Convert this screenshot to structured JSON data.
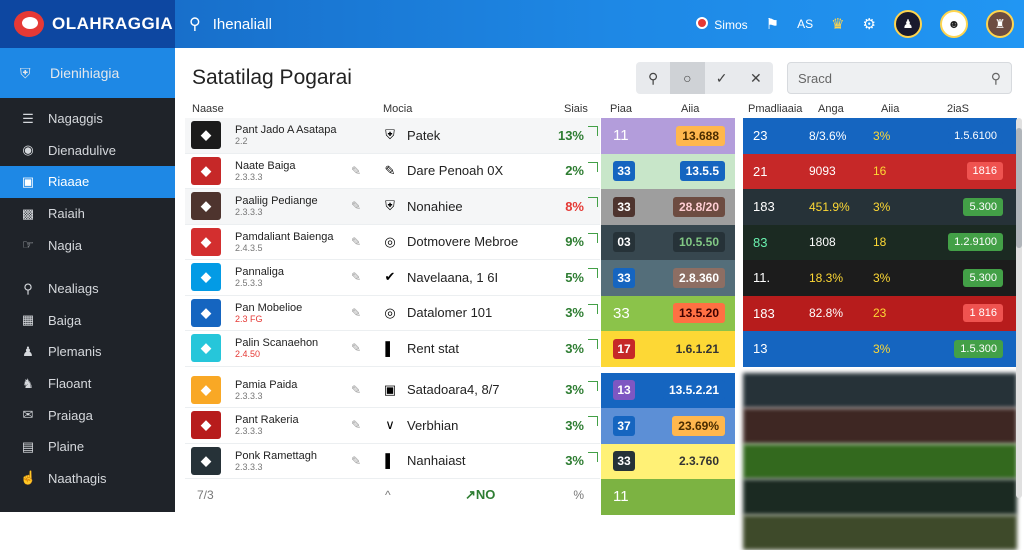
{
  "app": {
    "title": "OLAHRAGGIA",
    "search_label": "Ihenaliall"
  },
  "topbar": {
    "items": [
      "Simos",
      "AS"
    ]
  },
  "sidebar": {
    "header": "Dienihiagia",
    "items": [
      {
        "label": "Nagaggis",
        "icon": "list-icon"
      },
      {
        "label": "Dienadulive",
        "icon": "globe-icon"
      },
      {
        "label": "Riaaae",
        "icon": "card-icon",
        "active": true
      },
      {
        "label": "Raiaih",
        "icon": "image-icon"
      },
      {
        "label": "Nagia",
        "icon": "hand-icon"
      },
      {
        "label": "Nealiags",
        "icon": "search-icon"
      },
      {
        "label": "Baiga",
        "icon": "table-icon"
      },
      {
        "label": "Plemanis",
        "icon": "person-icon"
      },
      {
        "label": "Flaoant",
        "icon": "people-icon"
      },
      {
        "label": "Praiaga",
        "icon": "mail-icon"
      },
      {
        "label": "Plaine",
        "icon": "grid-icon"
      },
      {
        "label": "Naathagis",
        "icon": "hand-icon"
      }
    ]
  },
  "page": {
    "title": "Satatilag Pogarai"
  },
  "toolbar": {
    "buttons": [
      "search",
      "circle",
      "check",
      "close"
    ]
  },
  "search": {
    "placeholder": "Sracd"
  },
  "columns": {
    "name": "Naase",
    "market": "Mocia",
    "stake": "Siais",
    "odds_a": "Piaa",
    "odds_b": "Aiia",
    "stat_1": "Pmadliaaia",
    "stat_2": "Anga",
    "stat_3": "Aiia",
    "stat_4": "2iaS"
  },
  "rows": [
    {
      "team": "Pant Jado A Asatapa",
      "sub": "2.2",
      "market": "Patek",
      "pct": "13%",
      "logo_color": "#1b1b1b",
      "market_icon": "shield-icon"
    },
    {
      "team": "Naate Baiga",
      "sub": "2.3.3.3",
      "market": "Dare Penoah 0X",
      "pct": "2%",
      "logo_color": "#c62828",
      "market_icon": "pencil-icon"
    },
    {
      "team": "Paaliig Pediange",
      "sub": "2.3.3.3",
      "market": "Nonahiee",
      "pct": "8%",
      "pct_red": true,
      "logo_color": "#4e342e",
      "market_icon": "shield-icon"
    },
    {
      "team": "Pamdaliant Baienga",
      "sub": "2.4.3.5",
      "market": "Dotmovere Mebroe",
      "pct": "9%",
      "logo_color": "#d32f2f",
      "market_icon": "coin-icon"
    },
    {
      "team": "Pannaliga",
      "sub": "2.5.3.3",
      "market": "Navelaana, 1 6I",
      "pct": "5%",
      "logo_color": "#039be5",
      "market_icon": "check-icon"
    },
    {
      "team": "Pan Mobelioe",
      "sub": "2.3 FG",
      "sub_red": true,
      "market": "Datalomer 101",
      "pct": "3%",
      "logo_color": "#1565c0",
      "market_icon": "coin-icon"
    },
    {
      "team": "Palin Scanaehon",
      "sub": "2.4.50",
      "sub_red": true,
      "market": "Rent stat",
      "pct": "3%",
      "logo_color": "#26c6da",
      "market_icon": "bar-icon"
    },
    {
      "team": "Pamia Paida",
      "sub": "2.3.3.3",
      "market": "Satadoara4, 8/7",
      "pct": "3%",
      "logo_color": "#f9a825",
      "market_icon": "gamepad-icon"
    },
    {
      "team": "Pant Rakeria",
      "sub": "2.3.3.3",
      "market": "Verbhian",
      "pct": "3%",
      "logo_color": "#b71c1c",
      "market_icon": "v-icon"
    },
    {
      "team": "Ponk Ramettagh",
      "sub": "2.3.3.3",
      "market": "Nanhaiast",
      "pct": "3%",
      "logo_color": "#263238",
      "market_icon": "bar-icon"
    }
  ],
  "odds": [
    {
      "left": "11",
      "pill": "13.688",
      "bg": "#b39ddb",
      "pill_bg": "#ffb74d",
      "pill_fg": "#4a2c00"
    },
    {
      "left": "33",
      "pill": "13.5.5",
      "bg": "#c8e6c9",
      "pill_bg": "#1565c0",
      "pill_fg": "#ffffff",
      "box": true,
      "box_bg": "#1565c0"
    },
    {
      "left": "33",
      "pill": "28.8/20",
      "bg": "#9e9e9e",
      "pill_bg": "#6d4c41",
      "pill_fg": "#ffcdd2",
      "box": true,
      "box_bg": "#4e342e"
    },
    {
      "left": "03",
      "pill": "10.5.50",
      "bg": "#37474f",
      "pill_bg": "#263238",
      "pill_fg": "#81c784",
      "box": true,
      "box_bg": "#263238"
    },
    {
      "left": "33",
      "pill": "2.8.360",
      "bg": "#546e7a",
      "pill_bg": "#8d6e63",
      "pill_fg": "#ffffff",
      "box": true,
      "box_bg": "#1565c0"
    },
    {
      "left": "33",
      "pill": "13.5.20",
      "bg": "#8bc34a",
      "pill_bg": "#ff7043",
      "pill_fg": "#3e0000"
    },
    {
      "left": "17",
      "pill": "1.6.1.21",
      "bg": "#fdd835",
      "pill_bg": "#fdd835",
      "pill_fg": "#333333",
      "box": true,
      "box_bg": "#c62828"
    },
    {
      "left": "13",
      "pill": "13.5.2.21",
      "bg": "#1565c0",
      "pill_bg": "#1565c0",
      "pill_fg": "#ffffff",
      "box": true,
      "box_bg": "#7e57c2"
    },
    {
      "left": "37",
      "pill": "23.69%",
      "bg": "#5c8fd6",
      "pill_bg": "#ffb74d",
      "pill_fg": "#4a2c00",
      "box": true,
      "box_bg": "#1565c0"
    },
    {
      "left": "33",
      "pill": "2.3.760",
      "bg": "#fff176",
      "pill_bg": "#fff176",
      "pill_fg": "#333333",
      "box": true,
      "box_bg": "#263238"
    },
    {
      "left": "11",
      "pill": "",
      "bg": "#7cb342"
    }
  ],
  "stats": [
    {
      "c1": "23",
      "c2": "8/3.6%",
      "c3": "3%",
      "c4": "1.5.6100",
      "bg": "#1565c0",
      "c4_bg": "#1565c0",
      "c3_color": "#fdd835"
    },
    {
      "c1": "21",
      "c2": "9093",
      "c3": "16",
      "c4": "1816",
      "bg": "#c62828",
      "c4_bg": "#ef5350",
      "c3_color": "#fdd835"
    },
    {
      "c1": "183",
      "c2": "451.9%",
      "c3": "3%",
      "c4": "5.300",
      "bg": "#263238",
      "c4_bg": "#43a047",
      "c2_color": "#fdd835",
      "c3_color": "#fdd835"
    },
    {
      "c1": "83",
      "c2": "1808",
      "c3": "18",
      "c4": "1.2.9100",
      "bg": "#1b2a22",
      "c4_bg": "#43a047",
      "c1_color": "#69f0ae",
      "c3_color": "#fdd835"
    },
    {
      "c1": "11.",
      "c2": "18.3%",
      "c3": "3%",
      "c4": "5.300",
      "bg": "#1c1c1c",
      "c4_bg": "#43a047",
      "c2_color": "#fdd835",
      "c3_color": "#fdd835"
    },
    {
      "c1": "183",
      "c2": "82.8%",
      "c3": "23",
      "c4": "1 816",
      "bg": "#b71c1c",
      "c4_bg": "#ef5350",
      "c3_color": "#fdd835"
    },
    {
      "c1": "13",
      "c2": "",
      "c3": "3%",
      "c4": "1.5.300",
      "bg": "#1565c0",
      "c4_bg": "#43a047",
      "c3_color": "#fdd835"
    }
  ],
  "footer": {
    "left": "7/3",
    "up": "^",
    "page": "↗NO",
    "right": "%"
  }
}
